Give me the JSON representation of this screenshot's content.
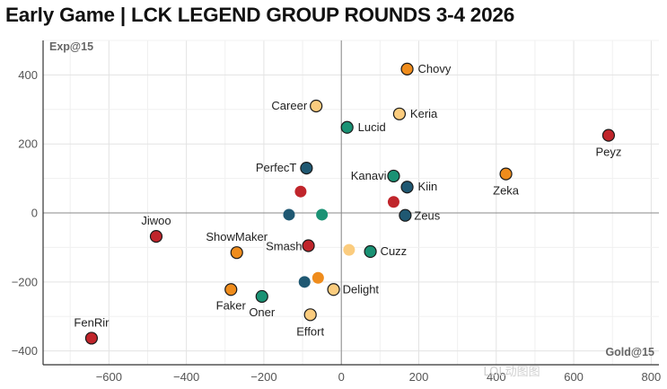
{
  "chart_data": {
    "type": "scatter",
    "title": "Early Game | LCK LEGEND GROUP ROUNDS 3-4 2026",
    "xlabel": "Gold@15",
    "ylabel": "Exp@15",
    "xlim": [
      -770,
      820
    ],
    "ylim": [
      -440,
      500
    ],
    "x_ticks": [
      -600,
      -400,
      -200,
      0,
      200,
      400,
      600,
      800
    ],
    "y_ticks": [
      -400,
      -200,
      0,
      200,
      400
    ],
    "grid": true,
    "colors": {
      "red": "#c0252b",
      "orange": "#ef8c1c",
      "peach": "#fbcc7e",
      "teal": "#1a9274",
      "navy": "#1f5872"
    },
    "points": [
      {
        "label": "Chovy",
        "x": 170,
        "y": 417,
        "color": "orange"
      },
      {
        "label": "Career",
        "x": -65,
        "y": 310,
        "color": "peach"
      },
      {
        "label": "Keria",
        "x": 150,
        "y": 287,
        "color": "peach"
      },
      {
        "label": "Lucid",
        "x": 15,
        "y": 248,
        "color": "teal"
      },
      {
        "label": "Peyz",
        "x": 690,
        "y": 225,
        "color": "red"
      },
      {
        "label": "PerfecT",
        "x": -90,
        "y": 130,
        "color": "navy"
      },
      {
        "label": "Kanavi",
        "x": 135,
        "y": 107,
        "color": "teal"
      },
      {
        "label": "Zeka",
        "x": 425,
        "y": 113,
        "color": "orange"
      },
      {
        "label": "Kiin",
        "x": 170,
        "y": 75,
        "color": "navy"
      },
      {
        "label": "",
        "x": -105,
        "y": 62,
        "color": "red"
      },
      {
        "label": "",
        "x": 135,
        "y": 32,
        "color": "red"
      },
      {
        "label": "",
        "x": -135,
        "y": -5,
        "color": "navy"
      },
      {
        "label": "",
        "x": -50,
        "y": -5,
        "color": "teal"
      },
      {
        "label": "Zeus",
        "x": 165,
        "y": -7,
        "color": "navy"
      },
      {
        "label": "Jiwoo",
        "x": -478,
        "y": -68,
        "color": "red"
      },
      {
        "label": "Smash",
        "x": -85,
        "y": -95,
        "color": "red"
      },
      {
        "label": "",
        "x": 20,
        "y": -107,
        "color": "peach"
      },
      {
        "label": "Cuzz",
        "x": 75,
        "y": -112,
        "color": "teal"
      },
      {
        "label": "ShowMaker",
        "x": -270,
        "y": -115,
        "color": "orange"
      },
      {
        "label": "",
        "x": -60,
        "y": -188,
        "color": "orange"
      },
      {
        "label": "",
        "x": -95,
        "y": -200,
        "color": "navy"
      },
      {
        "label": "Delight",
        "x": -20,
        "y": -222,
        "color": "peach"
      },
      {
        "label": "Faker",
        "x": -285,
        "y": -222,
        "color": "orange"
      },
      {
        "label": "Oner",
        "x": -205,
        "y": -242,
        "color": "teal"
      },
      {
        "label": "Effort",
        "x": -80,
        "y": -295,
        "color": "peach"
      },
      {
        "label": "FenRir",
        "x": -645,
        "y": -363,
        "color": "red"
      }
    ]
  },
  "watermark": "LOL动图图"
}
